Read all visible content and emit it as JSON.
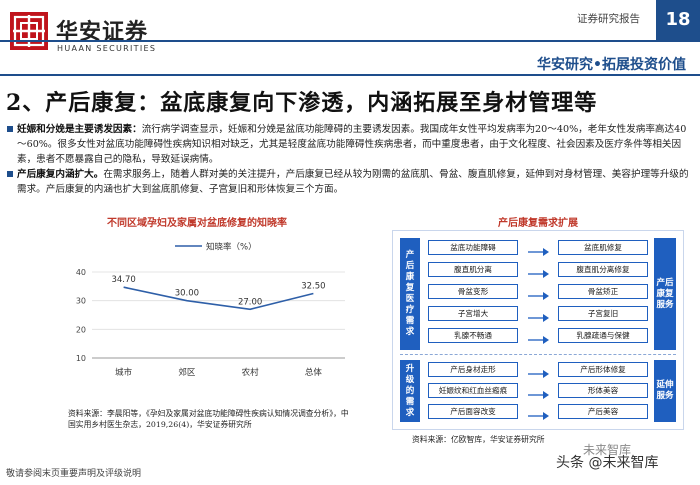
{
  "header": {
    "logo_cn": "华安证券",
    "logo_en": "HUAAN SECURITIES",
    "report_type": "证券研究报告",
    "page_number": "18",
    "slogan": "华安研究•拓展投资价值",
    "brand_color": "#1e4e8c",
    "logo_color": "#c0141c"
  },
  "section_title": "2、产后康复：盆底康复向下渗透，内涵拓展至身材管理等",
  "bullets": [
    {
      "lead": "妊娠和分娩是主要诱发因素：",
      "text": "流行病学调查显示，妊娠和分娩是盆底功能障碍的主要诱发因素。我国成年女性平均发病率为20～40%，老年女性发病率高达40～60%。很多女性对盆底功能障碍性疾病知识相对缺乏，尤其是轻度盆底功能障碍性疾病患者，而中重度患者，由于文化程度、社会因素及医疗条件等相关因素，患者不愿暴露自己的隐私，导致延误病情。"
    },
    {
      "lead": "产后康复内涵扩大。",
      "text": "在需求服务上，随着人群对美的关注提升，产后康复已经从较为刚需的盆底肌、骨盆、腹直肌修复，延伸到对身材管理、美容护理等升级的需求。产后康复的内涵也扩大到盆底肌修复、子宫复旧和形体恢复三个方面。"
    }
  ],
  "chart_data": {
    "type": "line",
    "title": "不同区域孕妇及家属对盆底修复的知晓率",
    "legend": "知晓率（%）",
    "legend_position": "top",
    "categories": [
      "城市",
      "郊区",
      "农村",
      "总体"
    ],
    "values": [
      34.7,
      30.0,
      27.0,
      32.5
    ],
    "value_labels": [
      "34.70",
      "30.00",
      "27.00",
      "32.50"
    ],
    "y_ticks": [
      "10",
      "20",
      "30",
      "40"
    ],
    "ylim": [
      10,
      40
    ],
    "grid": true,
    "line_color": "#2e5fa8",
    "source": "资料来源：李晨阳等，《孕妇及家属对盆底功能障碍性疾病认知情况调查分析》，中国实用乡村医生杂志，2019,26(4)，华安证券研究所"
  },
  "diagram": {
    "title": "产后康复需求扩展",
    "top_left_label": "产后康复医疗需求",
    "top_right_label": "产后康复服务",
    "bottom_left_label": "升级的需求",
    "bottom_right_label": "延伸服务",
    "top_rows": [
      {
        "need": "盆底功能障碍",
        "service": "盆底肌修复"
      },
      {
        "need": "腹直肌分离",
        "service": "腹直肌分离修复"
      },
      {
        "need": "骨盆变形",
        "service": "骨盆矫正"
      },
      {
        "need": "子宫增大",
        "service": "子宫复旧"
      },
      {
        "need": "乳腺不畅通",
        "service": "乳腺疏通与保健"
      }
    ],
    "bottom_rows": [
      {
        "need": "产后身材走形",
        "service": "产后形体修复"
      },
      {
        "need": "妊娠纹和红血丝瘢痕",
        "service": "形体美容"
      },
      {
        "need": "产后面容改变",
        "service": "产后美容"
      }
    ],
    "box_color": "#1f5fbf",
    "source": "资料来源：亿欧智库，华安证券研究所"
  },
  "footer": {
    "disclaimer": "敬请参阅末页重要声明及评级说明",
    "watermark": "头条 @未来智库",
    "watermark_mark": "未来智库"
  }
}
